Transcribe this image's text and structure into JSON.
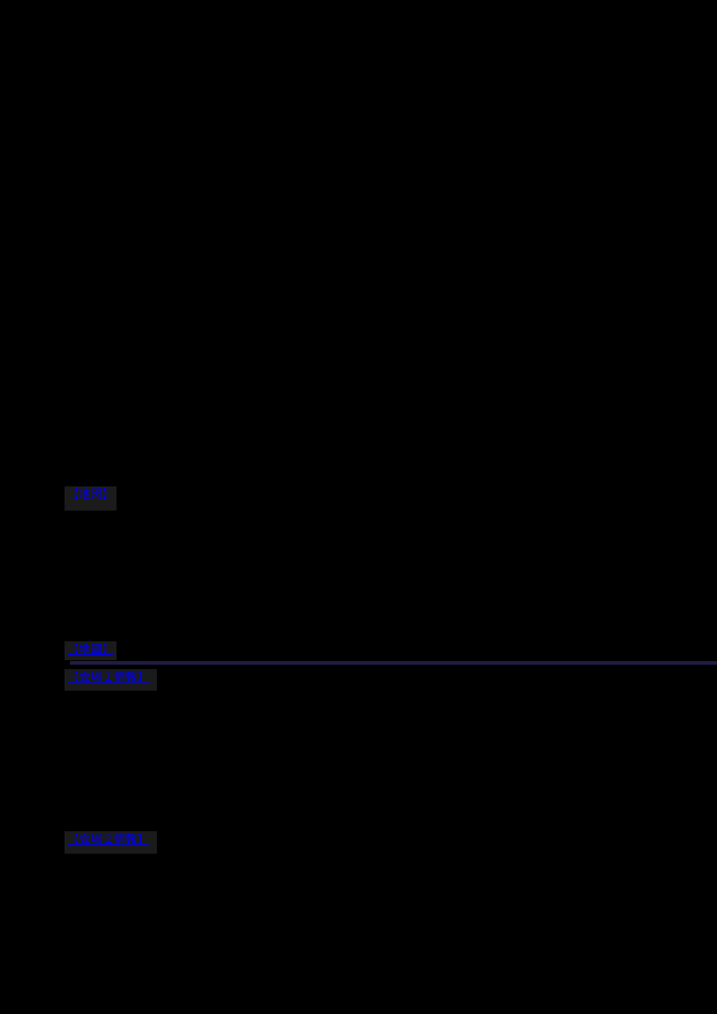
{
  "page": {
    "background_color": "#000000",
    "link_color": "#0000ee",
    "link_box_color": "#1b1b1b",
    "divider_color": "#201d45"
  },
  "links": [
    {
      "label": "【地図】"
    },
    {
      "label": "【地図】"
    },
    {
      "label": "【会場１情報】"
    },
    {
      "label": "【会場２情報】"
    }
  ]
}
